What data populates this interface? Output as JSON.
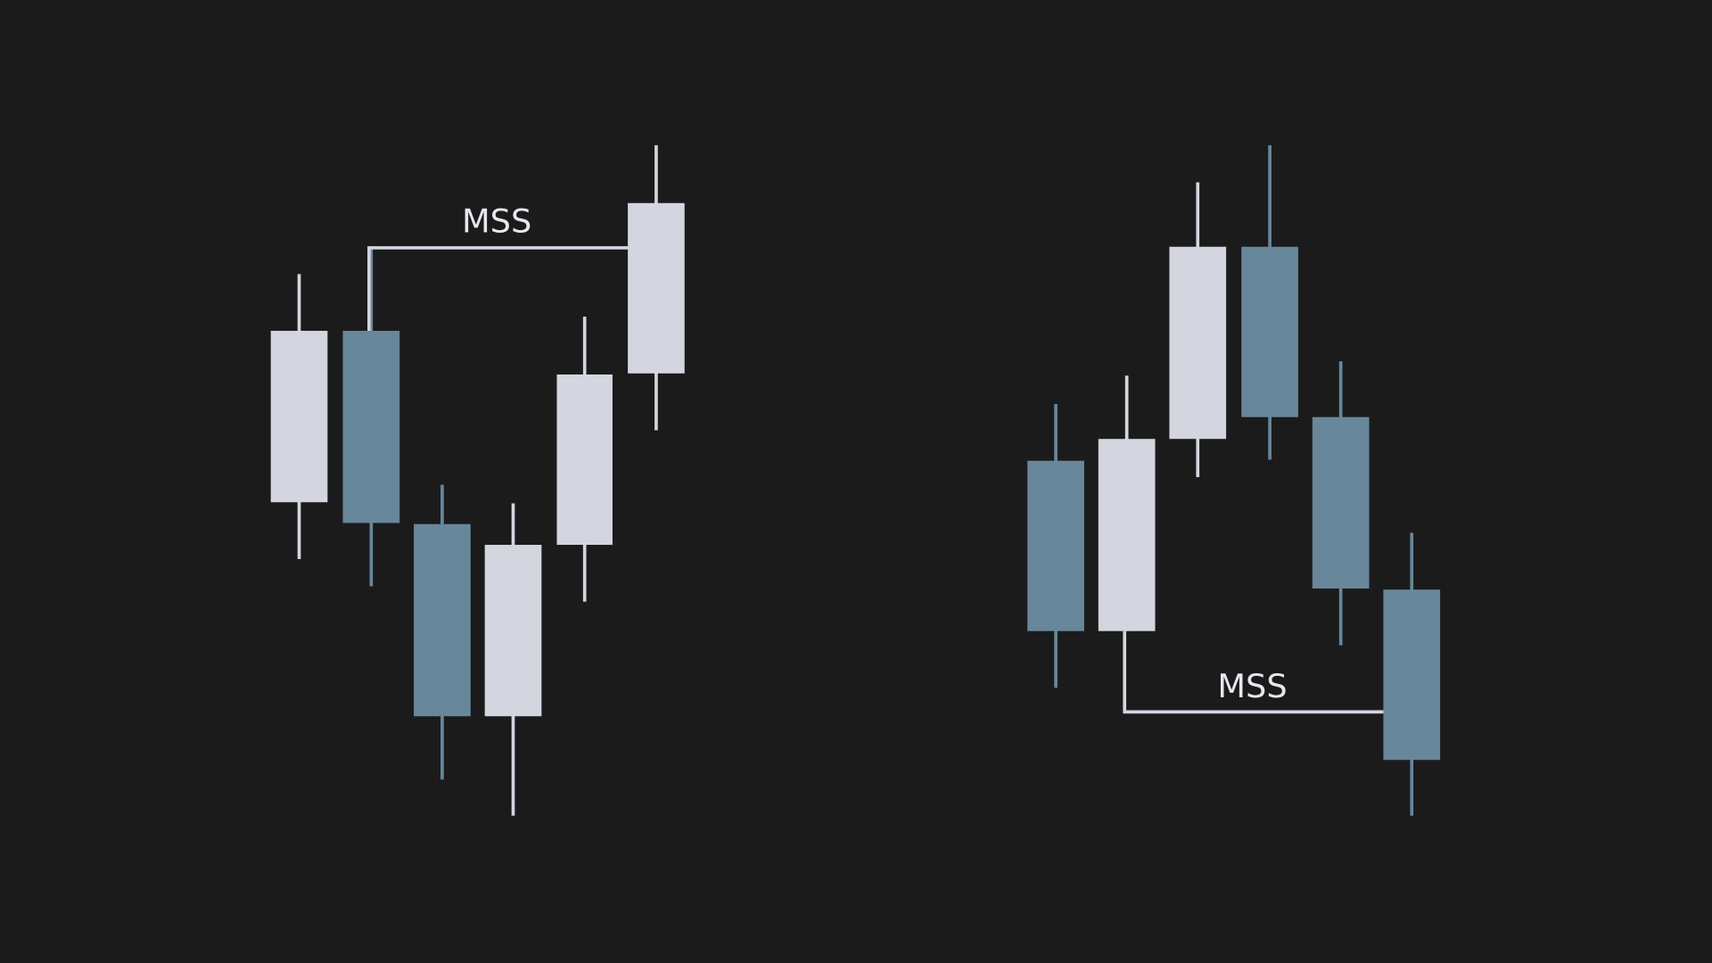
{
  "left": {
    "label": "MSS"
  },
  "right": {
    "label": "MSS"
  }
}
